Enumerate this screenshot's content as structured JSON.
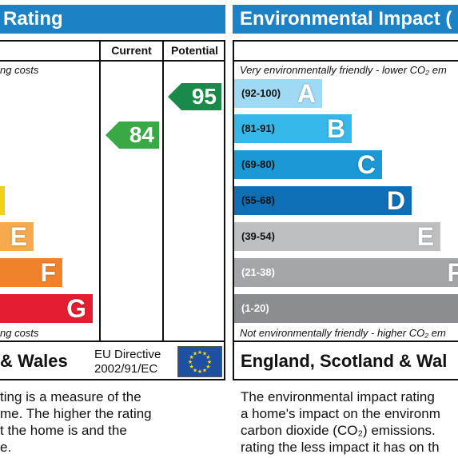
{
  "energy": {
    "header": "Rating",
    "current_label": "Current",
    "potential_label": "Potential",
    "top_note": "ng costs",
    "bottom_note": "ng costs",
    "bands": [
      {
        "letter": "E",
        "color": "#f6a94d"
      },
      {
        "letter": "F",
        "color": "#f0822b"
      },
      {
        "letter": "G",
        "color": "#e51d30"
      }
    ],
    "yellow_color": "#f3d013",
    "current": {
      "value": "84",
      "color": "#3aa845"
    },
    "potential": {
      "value": "95",
      "color": "#1a8a4a"
    },
    "footer_title": "& Wales",
    "directive_line1": "EU Directive",
    "directive_line2": "2002/91/EC",
    "para_lines": [
      "ting is a measure of the",
      "me. The higher the rating",
      "t the home is and the",
      "e."
    ]
  },
  "environment": {
    "header": "Environmental Impact (",
    "top_note": "Very environmentally friendly - lower CO₂ em",
    "bottom_note": "Not environmentally friendly - higher CO₂ em",
    "bands": [
      {
        "range": "(92-100)",
        "letter": "A",
        "color": "#9fd9f3"
      },
      {
        "range": "(81-91)",
        "letter": "B",
        "color": "#35b7ea"
      },
      {
        "range": "(69-80)",
        "letter": "C",
        "color": "#1b98d6"
      },
      {
        "range": "(55-68)",
        "letter": "D",
        "color": "#0f6fb6"
      },
      {
        "range": "(39-54)",
        "letter": "E",
        "color": "#bebfc1"
      },
      {
        "range": "(21-38)",
        "letter": "F",
        "color": "#a4a5a8"
      },
      {
        "range": "(1-20)",
        "letter": "",
        "color": "#8c8d90"
      }
    ],
    "footer_title": "England, Scotland & Wal",
    "para_lines": [
      "The environmental impact rating",
      "a home's impact on the environm",
      "carbon dioxide (CO₂) emissions.",
      "rating the less impact it has on th"
    ]
  }
}
